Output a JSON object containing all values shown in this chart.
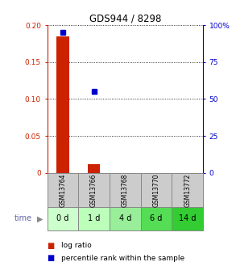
{
  "title": "GDS944 / 8298",
  "samples": [
    "GSM13764",
    "GSM13766",
    "GSM13768",
    "GSM13770",
    "GSM13772"
  ],
  "time_labels": [
    "0 d",
    "1 d",
    "4 d",
    "6 d",
    "14 d"
  ],
  "log_ratio": [
    0.185,
    0.012,
    0.0,
    0.0,
    0.0
  ],
  "percentile_rank": [
    95.0,
    55.0,
    null,
    null,
    null
  ],
  "ylim_left": [
    0,
    0.2
  ],
  "ylim_right": [
    0,
    100
  ],
  "yticks_left": [
    0,
    0.05,
    0.1,
    0.15,
    0.2
  ],
  "ytick_labels_left": [
    "0",
    "0.05",
    "0.10",
    "0.15",
    "0.20"
  ],
  "yticks_right": [
    0,
    25,
    50,
    75,
    100
  ],
  "ytick_labels_right": [
    "0",
    "25",
    "50",
    "75",
    "100%"
  ],
  "bar_color": "#cc2200",
  "dot_color": "#0000cc",
  "gsm_bg_color": "#cccccc",
  "time_colors": [
    "#ccffcc",
    "#bbffbb",
    "#99ee99",
    "#55dd55",
    "#33cc33"
  ],
  "legend_bar_label": "log ratio",
  "legend_dot_label": "percentile rank within the sample"
}
